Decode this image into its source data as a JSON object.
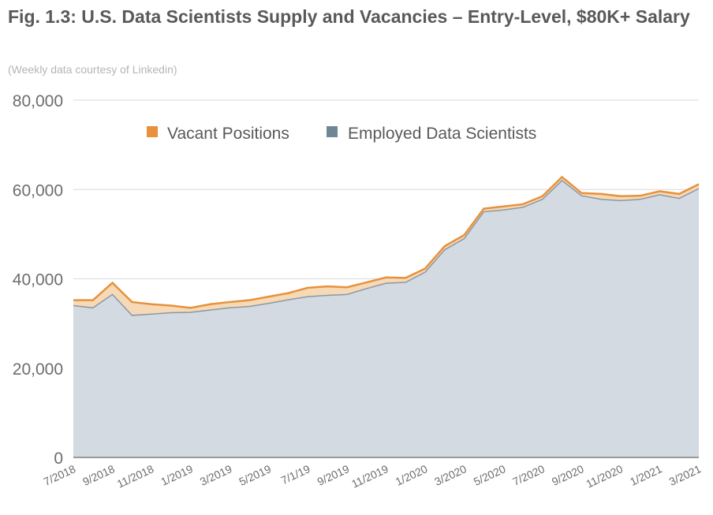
{
  "title": "Fig. 1.3: U.S. Data Scientists Supply and Vacancies – Entry-Level, $80K+ Salary",
  "subtitle": "(Weekly data courtesy of Linkedin)",
  "chart_data": {
    "type": "area",
    "stacked": true,
    "ylim": [
      0,
      80000
    ],
    "yticks": [
      "0",
      "20,000",
      "40,000",
      "60,000",
      "80,000"
    ],
    "ytick_values": [
      0,
      20000,
      40000,
      60000,
      80000
    ],
    "xtick_labels": [
      "7/2018",
      "9/2018",
      "11/2018",
      "1/2019",
      "3/2019",
      "5/2019",
      "7/1/19",
      "9/2019",
      "11/2019",
      "1/2020",
      "3/2020",
      "5/2020",
      "7/2020",
      "9/2020",
      "11/2020",
      "1/2021",
      "3/2021"
    ],
    "legend": {
      "position": "top-center",
      "entries": [
        "Vacant Positions",
        "Employed Data Scientists"
      ]
    },
    "grid": true,
    "colors": {
      "vacant_fill": "#f6d9b6",
      "vacant_line": "#e8913c",
      "employed_fill": "#d4dae1",
      "employed_line": "#8b98a5",
      "grid": "#d9d9d9",
      "axis": "#7f7f7f"
    },
    "x": [
      "2018-07",
      "2018-08",
      "2018-09",
      "2018-10",
      "2018-11",
      "2018-12",
      "2019-01",
      "2019-02",
      "2019-03",
      "2019-04",
      "2019-05",
      "2019-06",
      "2019-07",
      "2019-08",
      "2019-09",
      "2019-10",
      "2019-11",
      "2019-12",
      "2020-01",
      "2020-02",
      "2020-03",
      "2020-04",
      "2020-05",
      "2020-06",
      "2020-07",
      "2020-08",
      "2020-09",
      "2020-10",
      "2020-11",
      "2020-12",
      "2021-01",
      "2021-02",
      "2021-03"
    ],
    "series": [
      {
        "name": "Employed Data Scientists",
        "values": [
          34000,
          33500,
          36500,
          31800,
          32100,
          32400,
          32500,
          33000,
          33500,
          33800,
          34500,
          35300,
          36000,
          36300,
          36500,
          37800,
          39000,
          39200,
          41500,
          46500,
          49000,
          55000,
          55400,
          56000,
          57800,
          62000,
          58600,
          57800,
          57500,
          57800,
          58800,
          58000,
          60200
        ]
      },
      {
        "name": "Vacant Positions",
        "values": [
          1200,
          1700,
          2600,
          3000,
          2200,
          1600,
          1000,
          1300,
          1300,
          1400,
          1500,
          1500,
          2000,
          2000,
          1600,
          1400,
          1300,
          1000,
          800,
          800,
          800,
          700,
          800,
          700,
          700,
          800,
          600,
          1200,
          1000,
          800,
          800,
          1000,
          1000
        ]
      }
    ]
  }
}
